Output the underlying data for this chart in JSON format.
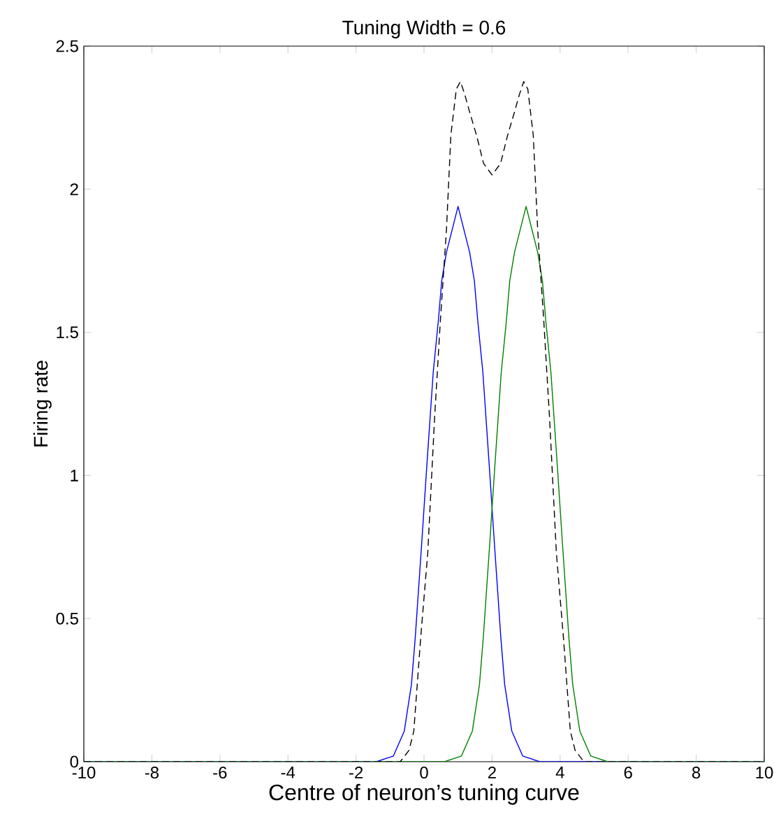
{
  "chart_data": {
    "type": "line",
    "title": "Tuning Width = 0.6",
    "xlabel": "Centre of neuron’s tuning curve",
    "ylabel": "Firing rate",
    "xlim": [
      -10,
      10
    ],
    "ylim": [
      0,
      2.5
    ],
    "xticks": [
      -10,
      -8,
      -6,
      -4,
      -2,
      0,
      2,
      4,
      6,
      8,
      10
    ],
    "yticks": [
      0,
      0.5,
      1,
      1.5,
      2,
      2.5
    ],
    "marker": "none",
    "series": [
      {
        "color": "#0000ff",
        "line_style": "solid",
        "x": [
          -10,
          -1.4,
          -0.9,
          -0.58,
          -0.37,
          -0.26,
          -0.07,
          0.08,
          0.27,
          0.42,
          0.52,
          0.66,
          1,
          1.34,
          1.48,
          1.58,
          1.73,
          1.92,
          2.07,
          2.26,
          2.37,
          2.58,
          2.9,
          3.4,
          10
        ],
        "values": [
          0,
          0,
          0.02,
          0.107,
          0.27,
          0.43,
          0.76,
          1.03,
          1.36,
          1.54,
          1.68,
          1.78,
          1.94,
          1.78,
          1.68,
          1.54,
          1.36,
          1.03,
          0.76,
          0.43,
          0.27,
          0.107,
          0.02,
          0,
          0
        ]
      },
      {
        "color": "#008000",
        "line_style": "solid",
        "x": [
          -10,
          0.6,
          1.1,
          1.42,
          1.63,
          1.74,
          1.93,
          2.08,
          2.27,
          2.42,
          2.52,
          2.66,
          3,
          3.34,
          3.48,
          3.58,
          3.73,
          3.92,
          4.07,
          4.26,
          4.37,
          4.58,
          4.9,
          5.4,
          10
        ],
        "values": [
          0,
          0,
          0.02,
          0.107,
          0.27,
          0.43,
          0.76,
          1.03,
          1.36,
          1.54,
          1.68,
          1.78,
          1.94,
          1.78,
          1.68,
          1.54,
          1.36,
          1.03,
          0.76,
          0.43,
          0.27,
          0.107,
          0.02,
          0,
          0
        ]
      },
      {
        "color": "#000000",
        "line_style": "dashed",
        "x": [
          -10,
          -0.7,
          -0.44,
          -0.3,
          -0.1,
          0.11,
          0.31,
          0.48,
          0.66,
          0.79,
          0.95,
          1.07,
          1.2,
          1.34,
          1.54,
          1.75,
          2,
          2.25,
          2.46,
          2.66,
          2.8,
          2.93,
          3.05,
          3.21,
          3.34,
          3.52,
          3.69,
          3.89,
          4.1,
          4.3,
          4.44,
          4.7,
          10
        ],
        "values": [
          0,
          0,
          0.04,
          0.107,
          0.43,
          0.73,
          1.2,
          1.54,
          1.86,
          2.19,
          2.35,
          2.376,
          2.33,
          2.27,
          2.19,
          2.09,
          2.05,
          2.09,
          2.19,
          2.27,
          2.33,
          2.376,
          2.35,
          2.19,
          1.86,
          1.54,
          1.2,
          0.73,
          0.43,
          0.107,
          0.04,
          0,
          0
        ]
      }
    ]
  }
}
